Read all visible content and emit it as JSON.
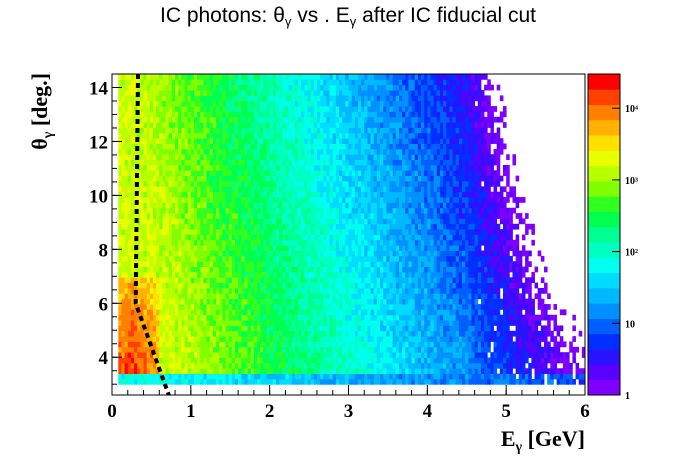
{
  "chart_data": {
    "type": "heatmap",
    "title": {
      "prefix": "IC photons: θ",
      "sub1": "γ",
      "middle": " vs . E",
      "sub2": "γ",
      "suffix": " after IC fiducial cut"
    },
    "xlabel": {
      "main": "E",
      "sub": "γ",
      "rest": " [GeV]"
    },
    "ylabel": {
      "main": "θ",
      "sub": "γ",
      "rest": " [deg.]"
    },
    "xlim": [
      0,
      6
    ],
    "ylim": [
      2.6,
      14.5
    ],
    "x_ticks": [
      0,
      1,
      2,
      3,
      4,
      5,
      6
    ],
    "x_tick_labels": [
      "0",
      "1",
      "2",
      "3",
      "4",
      "5",
      "6"
    ],
    "y_ticks": [
      4,
      6,
      8,
      10,
      12,
      14
    ],
    "y_tick_labels": [
      "4",
      "6",
      "8",
      "10",
      "12",
      "14"
    ],
    "z_scale": "log",
    "zlim": [
      1,
      30000
    ],
    "z_ticks": [
      1,
      10,
      100,
      1000,
      10000
    ],
    "z_tick_labels": [
      "1",
      "10",
      "10²",
      "10³",
      "10⁴"
    ],
    "palette": [
      "#8000ff",
      "#5a00ff",
      "#2a14ff",
      "#0030ff",
      "#0060ff",
      "#0090ff",
      "#00b8ff",
      "#00dcff",
      "#00ffee",
      "#00ffc0",
      "#00ff90",
      "#00ff50",
      "#30ff20",
      "#80ff00",
      "#b8ff00",
      "#e8ff00",
      "#ffe000",
      "#ffb000",
      "#ff8000",
      "#ff4000",
      "#ff0000"
    ],
    "cut_line": {
      "style": "black dashed",
      "points": [
        [
          0.33,
          14.5
        ],
        [
          0.3,
          6.0
        ],
        [
          0.72,
          2.6
        ]
      ]
    }
  }
}
